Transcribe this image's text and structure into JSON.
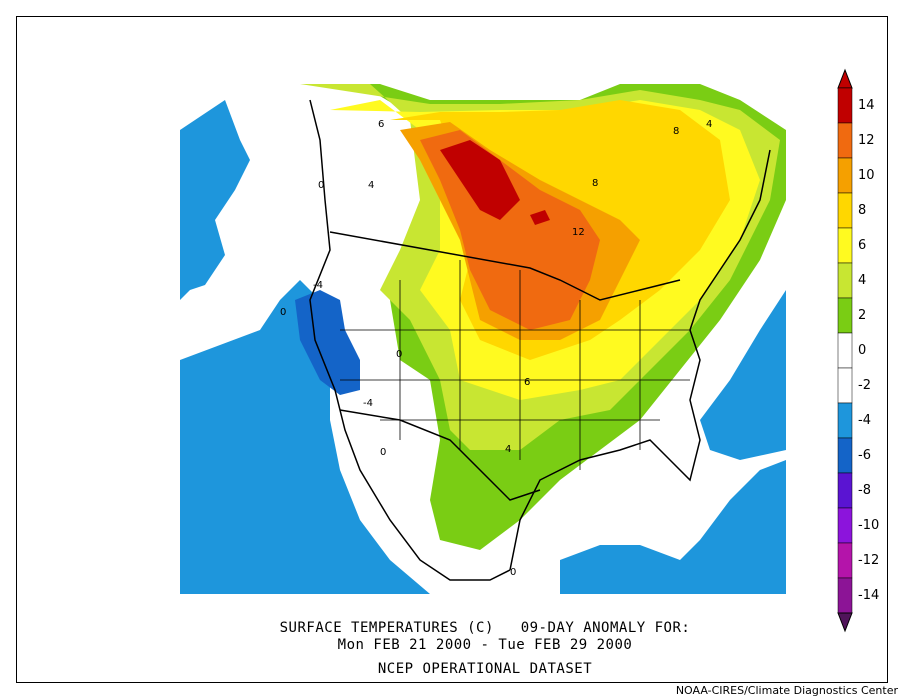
{
  "title_line1": "SURFACE TEMPERATURES (C)   09-DAY ANOMALY FOR:",
  "title_line2": "Mon FEB 21 2000 - Tue FEB 29 2000",
  "dataset": "NCEP OPERATIONAL DATASET",
  "credit": "NOAA-CIRES/Climate Diagnostics Center",
  "colorbar": {
    "levels": [
      {
        "label": "14",
        "color": "#c00000"
      },
      {
        "label": "12",
        "color": "#f06a10"
      },
      {
        "label": "10",
        "color": "#f5a000"
      },
      {
        "label": "8",
        "color": "#ffd700"
      },
      {
        "label": "6",
        "color": "#fffa20"
      },
      {
        "label": "4",
        "color": "#c8e632"
      },
      {
        "label": "2",
        "color": "#7acd14"
      },
      {
        "label": "0",
        "color": "#ffffff"
      },
      {
        "label": "-2",
        "color": "#ffffff"
      },
      {
        "label": "-4",
        "color": "#1e96dc"
      },
      {
        "label": "-6",
        "color": "#1464c8"
      },
      {
        "label": "-8",
        "color": "#5a14d2"
      },
      {
        "label": "-10",
        "color": "#8c14dc"
      },
      {
        "label": "-12",
        "color": "#b414aa"
      },
      {
        "label": "-14",
        "color": "#8c1496"
      }
    ],
    "top_color": "#c00000",
    "bottom_color": "#50145a"
  },
  "contour_labels": [
    {
      "text": "6"
    },
    {
      "text": "4"
    },
    {
      "text": "0"
    },
    {
      "text": "8"
    },
    {
      "text": "4"
    },
    {
      "text": "8"
    },
    {
      "text": "12"
    },
    {
      "text": "-4"
    },
    {
      "text": "0"
    },
    {
      "text": "0"
    },
    {
      "text": "-4"
    },
    {
      "text": "6"
    },
    {
      "text": "4"
    },
    {
      "text": "0"
    },
    {
      "text": "0"
    }
  ],
  "colors": {
    "ocean_cold": "#1e96dc",
    "cold2": "#1464c8",
    "neutral": "#ffffff",
    "green": "#7acd14",
    "ygreen": "#c8e632",
    "yellow": "#fffa20",
    "gold": "#ffd700",
    "orange": "#f5a000",
    "dorange": "#f06a10",
    "red": "#c00000"
  }
}
